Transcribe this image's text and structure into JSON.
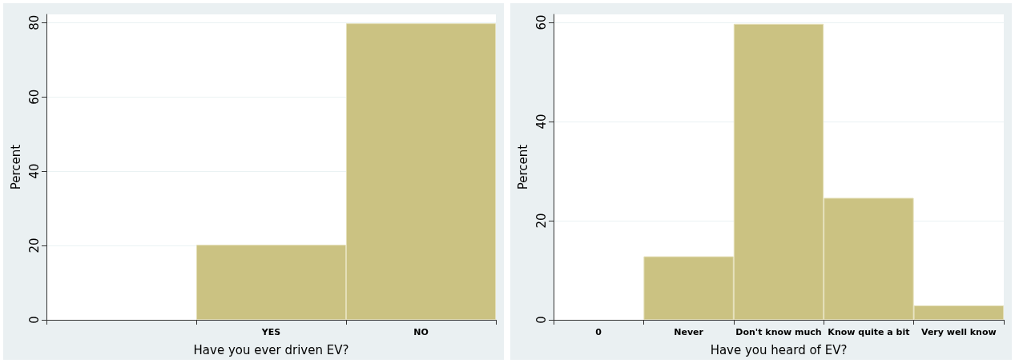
{
  "chart_data": [
    {
      "type": "bar",
      "xlabel": "Have you ever driven EV?",
      "ylabel": "Percent",
      "categories": [
        null,
        "YES",
        "NO"
      ],
      "values": [
        null,
        20.2,
        79.8
      ],
      "color": "#cbc282",
      "ylim": [
        0,
        82.2
      ],
      "yticks": [
        0,
        20,
        40,
        60,
        80
      ],
      "grid": "y"
    },
    {
      "type": "bar",
      "xlabel": "Have you heard of EV?",
      "ylabel": "Percent",
      "categories": [
        "0",
        "Never",
        "Don't know much",
        "Know quite a bit",
        "Very well know"
      ],
      "values": [
        null,
        12.8,
        59.7,
        24.6,
        2.9
      ],
      "color": "#cbc282",
      "ylim": [
        0,
        61.6
      ],
      "yticks": [
        0,
        20,
        40,
        60
      ],
      "grid": "y"
    }
  ]
}
